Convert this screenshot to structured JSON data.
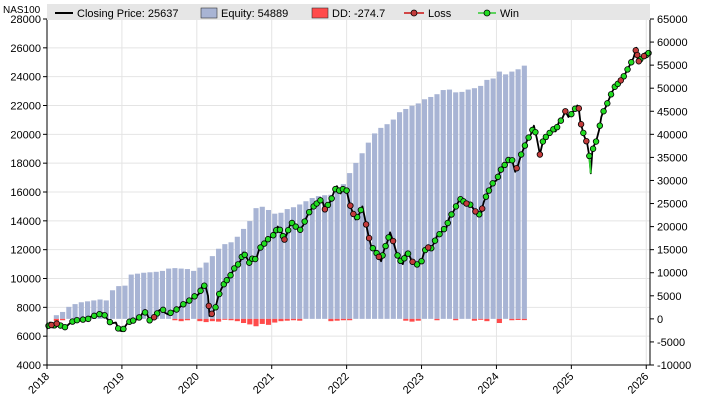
{
  "symbol": "NAS100",
  "legend": {
    "closing": "Closing Price: 25637",
    "equity": "Equity: 54889",
    "dd": "DD: -274.7",
    "loss": "Loss",
    "win": "Win"
  },
  "colors": {
    "price": "#000000",
    "equity": "#a8b4d4",
    "dd": "#ff4a4a",
    "loss_marker": "#c43c3c",
    "win_marker": "#22dd22",
    "win_line": "#30cc30",
    "loss_line": "#cc1010",
    "legend_bg": "#e6e6e6"
  },
  "chart_data": {
    "type": "bar",
    "x_start": 2018.0,
    "x_end": 2026.05,
    "x_ticks": [
      "2018",
      "2019",
      "2020",
      "2021",
      "2022",
      "2023",
      "2024",
      "2025",
      "2026"
    ],
    "y_left": {
      "min": 4000,
      "max": 28000,
      "ticks": [
        4000,
        6000,
        8000,
        10000,
        12000,
        14000,
        16000,
        18000,
        20000,
        22000,
        24000,
        26000,
        28000
      ]
    },
    "y_right": {
      "min": -10000,
      "max": 65000,
      "ticks": [
        -10000,
        -5000,
        0,
        5000,
        10000,
        15000,
        20000,
        25000,
        30000,
        35000,
        40000,
        45000,
        50000,
        55000,
        60000,
        65000
      ]
    },
    "bar_step": 0.0833,
    "equity": [
      0,
      800,
      1500,
      2600,
      3200,
      3600,
      3800,
      4000,
      4200,
      4000,
      6200,
      7100,
      7200,
      9600,
      9800,
      10000,
      10100,
      10200,
      10400,
      10900,
      11000,
      10900,
      10800,
      10400,
      11100,
      12200,
      13600,
      15200,
      16200,
      16600,
      17800,
      19500,
      21200,
      24000,
      24300,
      23600,
      22800,
      23000,
      23800,
      24200,
      24800,
      25500,
      26200,
      26600,
      26800,
      26900,
      27600,
      29200,
      31600,
      33800,
      35900,
      38200,
      40200,
      41400,
      42200,
      43200,
      44800,
      45500,
      46200,
      46700,
      47600,
      48100,
      48700,
      49600,
      49700,
      49100,
      49200,
      49700,
      50000,
      50500,
      51800,
      52100,
      53600,
      53000,
      53600,
      54100,
      54889
    ],
    "dd": [
      0,
      -500,
      -300,
      0,
      0,
      0,
      0,
      0,
      0,
      0,
      0,
      0,
      0,
      -200,
      -300,
      0,
      0,
      0,
      0,
      0,
      -300,
      -500,
      -300,
      0,
      -500,
      -700,
      -500,
      -600,
      -200,
      -300,
      -500,
      -900,
      -1200,
      -1600,
      -1100,
      -1300,
      -800,
      -500,
      -400,
      -300,
      -400,
      0,
      0,
      0,
      0,
      -500,
      -400,
      -300,
      -300,
      0,
      0,
      0,
      0,
      0,
      0,
      0,
      0,
      -400,
      -600,
      -400,
      0,
      0,
      -300,
      0,
      0,
      -300,
      0,
      0,
      -400,
      -200,
      -500,
      0,
      -900,
      0,
      -300,
      -250,
      -274.7
    ],
    "price": [
      [
        2018.0,
        6500
      ],
      [
        2018.04,
        6950
      ],
      [
        2018.08,
        6600
      ],
      [
        2018.12,
        6900
      ],
      [
        2018.17,
        6750
      ],
      [
        2018.21,
        6700
      ],
      [
        2018.25,
        6600
      ],
      [
        2018.29,
        6820
      ],
      [
        2018.33,
        7000
      ],
      [
        2018.37,
        7050
      ],
      [
        2018.42,
        7150
      ],
      [
        2018.46,
        7050
      ],
      [
        2018.5,
        7250
      ],
      [
        2018.54,
        7150
      ],
      [
        2018.58,
        7350
      ],
      [
        2018.62,
        7400
      ],
      [
        2018.67,
        7450
      ],
      [
        2018.71,
        7550
      ],
      [
        2018.75,
        7600
      ],
      [
        2018.79,
        7300
      ],
      [
        2018.83,
        7000
      ],
      [
        2018.87,
        6900
      ],
      [
        2018.92,
        6950
      ],
      [
        2018.96,
        6400
      ],
      [
        2019.0,
        6350
      ],
      [
        2019.04,
        6650
      ],
      [
        2019.08,
        6950
      ],
      [
        2019.12,
        7050
      ],
      [
        2019.17,
        7100
      ],
      [
        2019.21,
        7200
      ],
      [
        2019.25,
        7400
      ],
      [
        2019.29,
        7700
      ],
      [
        2019.33,
        7600
      ],
      [
        2019.37,
        7100
      ],
      [
        2019.42,
        7250
      ],
      [
        2019.46,
        7500
      ],
      [
        2019.5,
        7800
      ],
      [
        2019.54,
        7900
      ],
      [
        2019.58,
        7600
      ],
      [
        2019.62,
        7500
      ],
      [
        2019.67,
        7700
      ],
      [
        2019.71,
        7800
      ],
      [
        2019.75,
        7900
      ],
      [
        2019.79,
        8100
      ],
      [
        2019.83,
        8250
      ],
      [
        2019.87,
        8350
      ],
      [
        2019.92,
        8550
      ],
      [
        2019.96,
        8750
      ],
      [
        2020.0,
        8800
      ],
      [
        2020.04,
        9000
      ],
      [
        2020.08,
        9600
      ],
      [
        2020.12,
        9400
      ],
      [
        2020.15,
        8800
      ],
      [
        2020.17,
        7400
      ],
      [
        2020.21,
        7600
      ],
      [
        2020.25,
        8000
      ],
      [
        2020.29,
        8800
      ],
      [
        2020.33,
        9300
      ],
      [
        2020.37,
        9700
      ],
      [
        2020.42,
        10000
      ],
      [
        2020.46,
        10300
      ],
      [
        2020.5,
        10700
      ],
      [
        2020.54,
        10900
      ],
      [
        2020.58,
        11200
      ],
      [
        2020.62,
        11800
      ],
      [
        2020.67,
        11400
      ],
      [
        2020.71,
        11000
      ],
      [
        2020.75,
        11500
      ],
      [
        2020.79,
        11300
      ],
      [
        2020.83,
        12000
      ],
      [
        2020.87,
        12300
      ],
      [
        2020.92,
        12500
      ],
      [
        2020.96,
        12800
      ],
      [
        2021.0,
        12900
      ],
      [
        2021.04,
        13100
      ],
      [
        2021.08,
        13600
      ],
      [
        2021.12,
        13300
      ],
      [
        2021.17,
        12700
      ],
      [
        2021.21,
        13200
      ],
      [
        2021.25,
        13800
      ],
      [
        2021.29,
        13900
      ],
      [
        2021.33,
        13500
      ],
      [
        2021.37,
        13300
      ],
      [
        2021.42,
        13700
      ],
      [
        2021.46,
        14200
      ],
      [
        2021.5,
        14600
      ],
      [
        2021.54,
        14900
      ],
      [
        2021.58,
        15100
      ],
      [
        2021.62,
        15300
      ],
      [
        2021.67,
        15500
      ],
      [
        2021.71,
        14800
      ],
      [
        2021.75,
        15100
      ],
      [
        2021.79,
        15400
      ],
      [
        2021.83,
        16000
      ],
      [
        2021.87,
        16400
      ],
      [
        2021.92,
        15900
      ],
      [
        2021.96,
        16300
      ],
      [
        2022.0,
        16100
      ],
      [
        2022.04,
        15200
      ],
      [
        2022.08,
        14600
      ],
      [
        2022.12,
        14100
      ],
      [
        2022.17,
        14500
      ],
      [
        2022.21,
        15000
      ],
      [
        2022.25,
        14000
      ],
      [
        2022.29,
        13000
      ],
      [
        2022.33,
        12200
      ],
      [
        2022.37,
        12000
      ],
      [
        2022.42,
        11600
      ],
      [
        2022.46,
        11200
      ],
      [
        2022.5,
        12000
      ],
      [
        2022.54,
        12500
      ],
      [
        2022.58,
        13200
      ],
      [
        2022.62,
        12600
      ],
      [
        2022.67,
        11700
      ],
      [
        2022.71,
        11300
      ],
      [
        2022.75,
        11000
      ],
      [
        2022.79,
        11800
      ],
      [
        2022.83,
        11700
      ],
      [
        2022.87,
        11200
      ],
      [
        2022.92,
        11000
      ],
      [
        2022.96,
        10950
      ],
      [
        2023.0,
        11200
      ],
      [
        2023.04,
        11900
      ],
      [
        2023.08,
        12200
      ],
      [
        2023.12,
        12000
      ],
      [
        2023.17,
        12500
      ],
      [
        2023.21,
        13000
      ],
      [
        2023.25,
        13100
      ],
      [
        2023.29,
        13400
      ],
      [
        2023.33,
        13500
      ],
      [
        2023.37,
        14200
      ],
      [
        2023.42,
        14600
      ],
      [
        2023.46,
        15000
      ],
      [
        2023.5,
        15400
      ],
      [
        2023.54,
        15600
      ],
      [
        2023.58,
        15100
      ],
      [
        2023.62,
        15300
      ],
      [
        2023.67,
        15000
      ],
      [
        2023.71,
        14700
      ],
      [
        2023.75,
        14500
      ],
      [
        2023.79,
        14400
      ],
      [
        2023.83,
        15300
      ],
      [
        2023.87,
        15800
      ],
      [
        2023.92,
        16300
      ],
      [
        2023.96,
        16700
      ],
      [
        2024.0,
        16800
      ],
      [
        2024.04,
        17300
      ],
      [
        2024.08,
        17800
      ],
      [
        2024.12,
        17900
      ],
      [
        2024.17,
        18300
      ],
      [
        2024.21,
        18200
      ],
      [
        2024.25,
        17400
      ],
      [
        2024.29,
        17900
      ],
      [
        2024.33,
        18600
      ],
      [
        2024.37,
        19100
      ],
      [
        2024.42,
        19700
      ],
      [
        2024.46,
        20000
      ],
      [
        2024.5,
        20600
      ],
      [
        2024.54,
        19700
      ],
      [
        2024.58,
        18600
      ],
      [
        2024.62,
        19500
      ],
      [
        2024.67,
        19900
      ],
      [
        2024.71,
        20100
      ],
      [
        2024.75,
        20400
      ],
      [
        2024.79,
        20200
      ],
      [
        2024.83,
        20800
      ],
      [
        2024.87,
        21000
      ],
      [
        2024.92,
        21600
      ],
      [
        2024.96,
        21200
      ],
      [
        2025.0,
        21400
      ],
      [
        2025.04,
        21700
      ],
      [
        2025.08,
        22000
      ],
      [
        2025.1,
        21800
      ],
      [
        2025.12,
        20900
      ],
      [
        2025.17,
        19900
      ],
      [
        2025.21,
        19400
      ],
      [
        2025.24,
        18500
      ],
      [
        2025.26,
        17300
      ],
      [
        2025.28,
        18800
      ],
      [
        2025.3,
        19200
      ],
      [
        2025.33,
        19500
      ],
      [
        2025.37,
        20300
      ],
      [
        2025.4,
        21200
      ],
      [
        2025.42,
        21500
      ],
      [
        2025.46,
        21900
      ],
      [
        2025.5,
        22400
      ],
      [
        2025.54,
        22900
      ],
      [
        2025.58,
        23300
      ],
      [
        2025.62,
        23500
      ],
      [
        2025.67,
        23800
      ],
      [
        2025.71,
        24100
      ],
      [
        2025.75,
        24500
      ],
      [
        2025.79,
        24900
      ],
      [
        2025.83,
        25300
      ],
      [
        2025.87,
        26000
      ],
      [
        2025.89,
        25000
      ],
      [
        2025.92,
        25200
      ],
      [
        2025.96,
        25400
      ],
      [
        2026.0,
        25500
      ],
      [
        2026.03,
        25637
      ]
    ],
    "loss_x": [
      2018.06,
      2018.13,
      2019.43,
      2020.16,
      2020.2,
      2021.17,
      2021.71,
      2022.05,
      2022.09,
      2022.26,
      2022.3,
      2022.43,
      2022.62,
      2022.88,
      2023.09,
      2023.6,
      2023.72,
      2023.81,
      2024.27,
      2024.58,
      2024.92,
      2025.1,
      2025.13,
      2025.2,
      2025.66,
      2025.86,
      2025.88,
      2025.9,
      2025.97
    ],
    "win_x": [
      2018.02,
      2018.1,
      2018.18,
      2018.24,
      2018.34,
      2018.4,
      2018.48,
      2018.55,
      2018.63,
      2018.7,
      2018.77,
      2018.84,
      2018.95,
      2019.02,
      2019.1,
      2019.15,
      2019.23,
      2019.31,
      2019.37,
      2019.47,
      2019.55,
      2019.65,
      2019.73,
      2019.82,
      2019.9,
      2019.97,
      2020.05,
      2020.1,
      2020.25,
      2020.3,
      2020.36,
      2020.4,
      2020.45,
      2020.5,
      2020.55,
      2020.6,
      2020.64,
      2020.7,
      2020.74,
      2020.78,
      2020.85,
      2020.9,
      2020.95,
      2021.02,
      2021.06,
      2021.11,
      2021.15,
      2021.22,
      2021.27,
      2021.32,
      2021.38,
      2021.44,
      2021.5,
      2021.56,
      2021.6,
      2021.65,
      2021.75,
      2021.8,
      2021.85,
      2021.9,
      2021.95,
      2022.0,
      2022.14,
      2022.19,
      2022.35,
      2022.4,
      2022.48,
      2022.52,
      2022.56,
      2022.68,
      2022.72,
      2022.77,
      2022.82,
      2022.94,
      2023.0,
      2023.05,
      2023.13,
      2023.18,
      2023.24,
      2023.3,
      2023.35,
      2023.4,
      2023.46,
      2023.52,
      2023.56,
      2023.65,
      2023.77,
      2023.86,
      2023.9,
      2023.95,
      2024.02,
      2024.06,
      2024.11,
      2024.16,
      2024.21,
      2024.33,
      2024.38,
      2024.43,
      2024.48,
      2024.52,
      2024.62,
      2024.66,
      2024.71,
      2024.76,
      2024.81,
      2024.86,
      2025.0,
      2025.05,
      2025.16,
      2025.24,
      2025.29,
      2025.33,
      2025.38,
      2025.43,
      2025.48,
      2025.53,
      2025.58,
      2025.62,
      2025.7,
      2025.75,
      2025.8,
      2025.92,
      2026.0,
      2026.03
    ]
  }
}
